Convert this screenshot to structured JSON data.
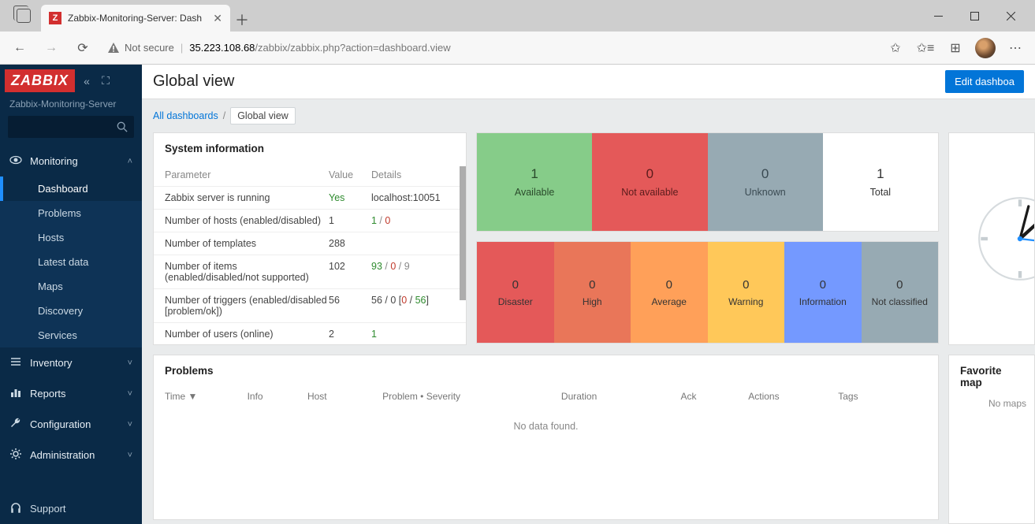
{
  "browser": {
    "tab_title": "Zabbix-Monitoring-Server: Dash",
    "favicon_letter": "Z",
    "security_label": "Not secure",
    "url_host": "35.223.108.68",
    "url_path": "/zabbix/zabbix.php?action=dashboard.view"
  },
  "sidebar": {
    "logo": "ZABBIX",
    "server": "Zabbix-Monitoring-Server",
    "sections": [
      {
        "icon": "eye",
        "label": "Monitoring",
        "expanded": true,
        "items": [
          "Dashboard",
          "Problems",
          "Hosts",
          "Latest data",
          "Maps",
          "Discovery",
          "Services"
        ],
        "active": 0
      },
      {
        "icon": "list",
        "label": "Inventory",
        "expanded": false
      },
      {
        "icon": "bar",
        "label": "Reports",
        "expanded": false
      },
      {
        "icon": "wrench",
        "label": "Configuration",
        "expanded": false
      },
      {
        "icon": "gear",
        "label": "Administration",
        "expanded": false
      }
    ],
    "support": "Support"
  },
  "page": {
    "title": "Global view",
    "edit": "Edit dashboa",
    "breadcrumb_all": "All dashboards",
    "breadcrumb_current": "Global view"
  },
  "sysinfo": {
    "title": "System information",
    "cols": {
      "p": "Parameter",
      "v": "Value",
      "d": "Details"
    },
    "rows": [
      {
        "p": "Zabbix server is running",
        "v": "Yes",
        "v_color": "#2e8b2e",
        "d": "localhost:10051"
      },
      {
        "p": "Number of hosts (enabled/disabled)",
        "v": "1",
        "d_parts": [
          {
            "t": "1",
            "c": "#2e8b2e"
          },
          {
            "t": " / ",
            "c": "#888"
          },
          {
            "t": "0",
            "c": "#c0392b"
          }
        ]
      },
      {
        "p": "Number of templates",
        "v": "288",
        "d": ""
      },
      {
        "p": "Number of items (enabled/disabled/not supported)",
        "v": "102",
        "d_parts": [
          {
            "t": "93",
            "c": "#2e8b2e"
          },
          {
            "t": " / ",
            "c": "#888"
          },
          {
            "t": "0",
            "c": "#c0392b"
          },
          {
            "t": " / ",
            "c": "#888"
          },
          {
            "t": "9",
            "c": "#888"
          }
        ]
      },
      {
        "p": "Number of triggers (enabled/disabled [problem/ok])",
        "v": "56",
        "d_parts": [
          {
            "t": "56 / 0 [",
            "c": "#444"
          },
          {
            "t": "0",
            "c": "#c0392b"
          },
          {
            "t": " / ",
            "c": "#444"
          },
          {
            "t": "56",
            "c": "#2e8b2e"
          },
          {
            "t": "]",
            "c": "#444"
          }
        ]
      },
      {
        "p": "Number of users (online)",
        "v": "2",
        "d_parts": [
          {
            "t": "1",
            "c": "#2e8b2e"
          }
        ]
      }
    ]
  },
  "avail": [
    {
      "n": "1",
      "label": "Available",
      "bg": "#86cc89",
      "fg": "#2a4a2b"
    },
    {
      "n": "0",
      "label": "Not available",
      "bg": "#e45959",
      "fg": "#5a1c1c"
    },
    {
      "n": "0",
      "label": "Unknown",
      "bg": "#97aab3",
      "fg": "#3a4a52"
    },
    {
      "n": "1",
      "label": "Total",
      "bg": "#ffffff",
      "fg": "#333333"
    }
  ],
  "severity": [
    {
      "n": "0",
      "label": "Disaster",
      "bg": "#e45959"
    },
    {
      "n": "0",
      "label": "High",
      "bg": "#e97659"
    },
    {
      "n": "0",
      "label": "Average",
      "bg": "#ffa059"
    },
    {
      "n": "0",
      "label": "Warning",
      "bg": "#ffc859"
    },
    {
      "n": "0",
      "label": "Information",
      "bg": "#7499ff"
    },
    {
      "n": "0",
      "label": "Not classified",
      "bg": "#97aab3"
    }
  ],
  "problems": {
    "title": "Problems",
    "cols": [
      "Time ▼",
      "Info",
      "Host",
      "Problem • Severity",
      "Duration",
      "Ack",
      "Actions",
      "Tags"
    ],
    "nodata": "No data found."
  },
  "favmaps": {
    "title": "Favorite map",
    "empty": "No maps"
  },
  "colors": {
    "sidebar_bg": "#0a2a47",
    "subnav_bg": "#0e3356",
    "accent": "#0275d8",
    "page_bg": "#e9ebec",
    "logo_bg": "#d22f2f"
  }
}
